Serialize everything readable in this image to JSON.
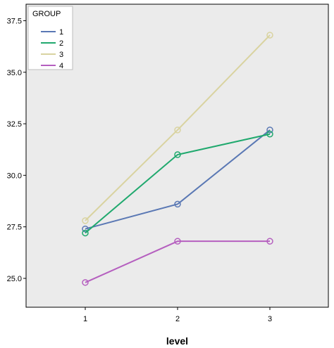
{
  "chart_data": {
    "type": "line",
    "title": "",
    "xlabel": "level",
    "ylabel": "",
    "x": [
      1,
      2,
      3
    ],
    "x_tick_labels": [
      "1",
      "2",
      "3"
    ],
    "y_ticks": [
      25.0,
      27.5,
      30.0,
      32.5,
      35.0,
      37.5
    ],
    "y_tick_labels": [
      "25.0",
      "27.5",
      "30.0",
      "32.5",
      "35.0",
      "37.5"
    ],
    "ylim": [
      23.6,
      38.3
    ],
    "grid": false,
    "marker": "open-circle",
    "legend": {
      "title": "GROUP",
      "placement": "top-left"
    },
    "series": [
      {
        "name": "1",
        "color": "#5a78b4",
        "values": [
          27.4,
          28.6,
          32.2
        ]
      },
      {
        "name": "2",
        "color": "#20a96e",
        "values": [
          27.2,
          31.0,
          32.0
        ]
      },
      {
        "name": "3",
        "color": "#d9d3a0",
        "values": [
          27.8,
          32.2,
          36.8
        ]
      },
      {
        "name": "4",
        "color": "#b55fbf",
        "values": [
          24.8,
          26.8,
          26.8
        ]
      }
    ],
    "plot_background": "#ebebeb"
  }
}
